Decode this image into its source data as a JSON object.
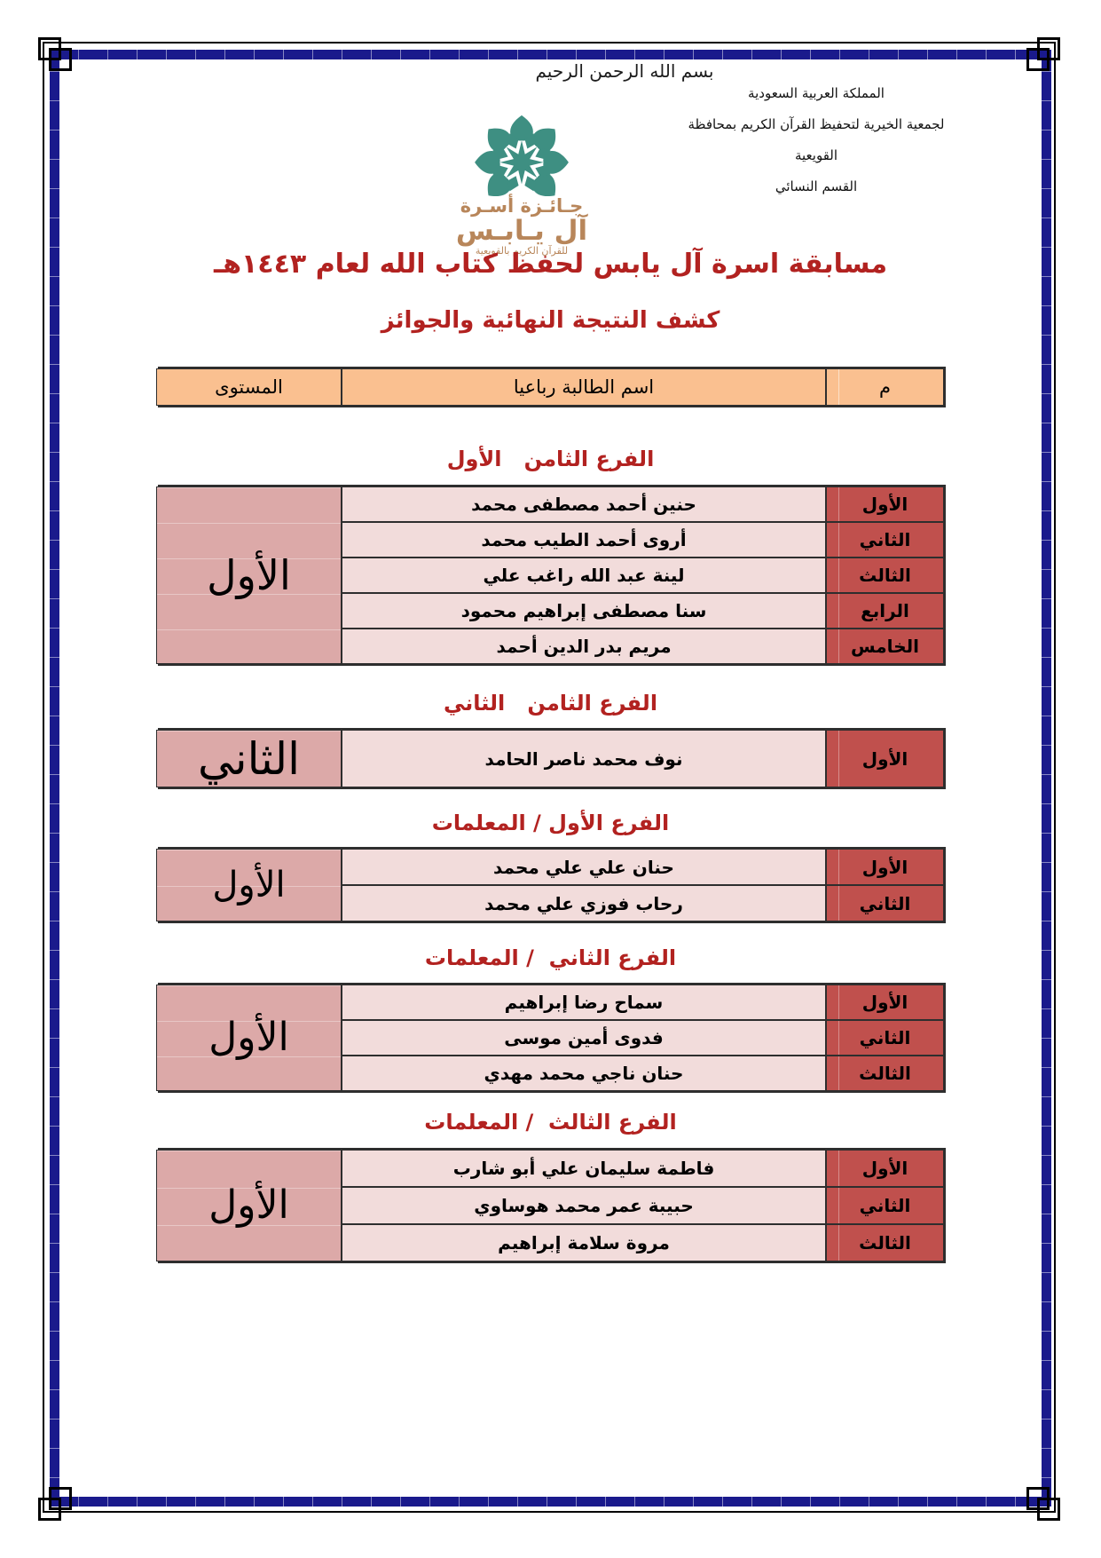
{
  "document": {
    "bismillah": "بسم الله الرحمن الرحيم",
    "org_lines": [
      "المملكة العربية السعودية",
      "لجمعية الخيرية لتحفيظ القرآن الكريم بمحافظة القويعية",
      "القسم النسائي"
    ],
    "logo": {
      "line1": "جـائـزة أسـرة",
      "line2": "آل يـابـس",
      "line3": "للقرآن الكريم بالقويعية"
    },
    "title_main": "مسابقة اسرة آل يابس لحفظ كتاب الله لعام ١٤٤٣هـ",
    "title_sub": "كشف النتيجة النهائية والجوائز",
    "table_header": {
      "serial": "م",
      "name": "اسم الطالبة رباعيا",
      "level": "المستوى"
    },
    "sections": [
      {
        "title": "الفرع الثامن   الأول",
        "level": "الأول",
        "rows": [
          {
            "rank": "الأول",
            "name": "حنين أحمد مصطفى محمد"
          },
          {
            "rank": "الثاني",
            "name": "أروى أحمد الطيب محمد"
          },
          {
            "rank": "الثالث",
            "name": "لينة عبد الله راغب علي"
          },
          {
            "rank": "الرابع",
            "name": "سنا مصطفى إبراهيم محمود"
          },
          {
            "rank": "الخامس",
            "name": "مريم بدر الدين أحمد"
          }
        ]
      },
      {
        "title": "الفرع الثامن   الثاني",
        "level": "الثاني",
        "rows": [
          {
            "rank": "الأول",
            "name": "نوف محمد ناصر الحامد"
          }
        ]
      },
      {
        "title": "الفرع الأول / المعلمات",
        "level": "الأول",
        "rows": [
          {
            "rank": "الأول",
            "name": "حنان علي علي محمد"
          },
          {
            "rank": "الثاني",
            "name": "رحاب فوزي علي محمد"
          }
        ]
      },
      {
        "title": "الفرع الثاني  / المعلمات",
        "level": "الأول",
        "rows": [
          {
            "rank": "الأول",
            "name": "سماح رضا إبراهيم"
          },
          {
            "rank": "الثاني",
            "name": "فدوى أمين موسى"
          },
          {
            "rank": "الثالث",
            "name": "حنان ناجي محمد مهدي"
          }
        ]
      },
      {
        "title": "الفرع الثالث  / المعلمات",
        "level": "الأول",
        "rows": [
          {
            "rank": "الأول",
            "name": "فاطمة سليمان علي أبو شارب"
          },
          {
            "rank": "الثاني",
            "name": "حبيبة عمر محمد هوساوي"
          },
          {
            "rank": "الثالث",
            "name": "مروة سلامة إبراهيم"
          }
        ]
      }
    ],
    "colors": {
      "border_navy": "#1A1A8C",
      "title_red": "#B22220",
      "header_peach": "#FAC090",
      "rank_red": "#C0504D",
      "name_pink": "#F2DCDB",
      "level_pink": "#DCA9A8",
      "logo_teal": "#3E8F82",
      "logo_tan": "#B8865A"
    }
  }
}
